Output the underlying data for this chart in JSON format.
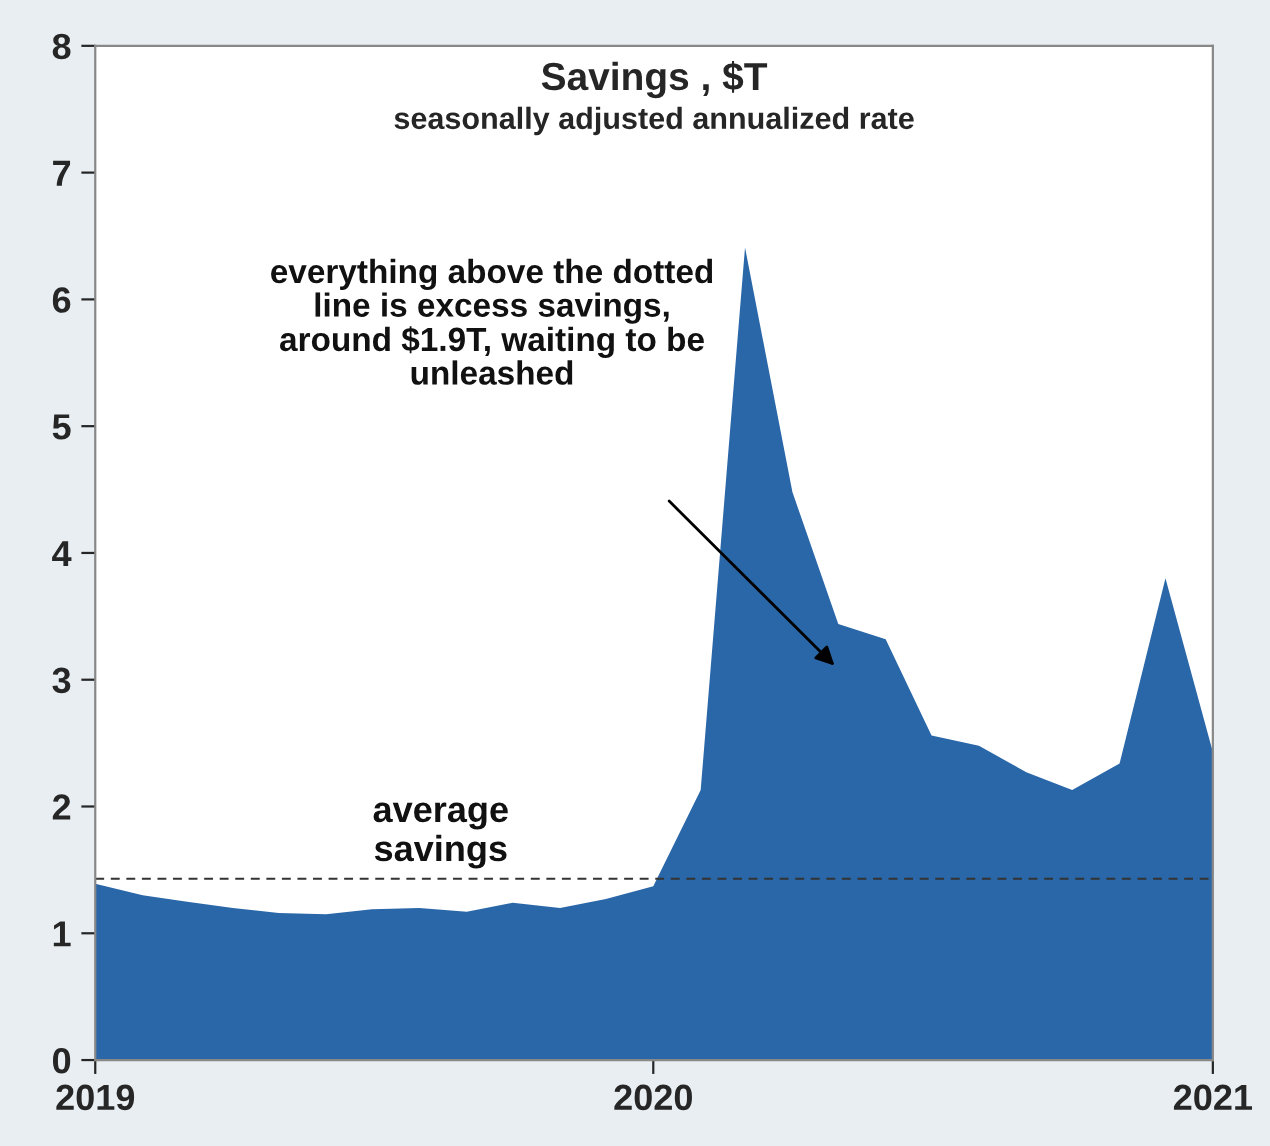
{
  "chart_data": {
    "type": "area",
    "title": "Savings , $T",
    "subtitle": "seasonally adjusted annualized rate",
    "x": [
      "2019-01",
      "2019-02",
      "2019-03",
      "2019-04",
      "2019-05",
      "2019-06",
      "2019-07",
      "2019-08",
      "2019-09",
      "2019-10",
      "2019-11",
      "2019-12",
      "2020-01",
      "2020-02",
      "2020-03",
      "2020-04",
      "2020-05",
      "2020-06",
      "2020-07",
      "2020-08",
      "2020-09",
      "2020-10",
      "2020-11",
      "2020-12",
      "2021-01"
    ],
    "series": [
      {
        "color": "#2a67a8",
        "values": [
          1.39,
          1.3,
          1.25,
          1.2,
          1.16,
          1.15,
          1.19,
          1.2,
          1.17,
          1.24,
          1.2,
          1.27,
          1.37,
          2.13,
          6.41,
          4.48,
          3.44,
          3.32,
          2.56,
          2.48,
          2.27,
          2.13,
          2.34,
          3.8,
          2.43
        ]
      }
    ],
    "xlim": [
      "2019",
      "2021"
    ],
    "xticks": [
      "2019",
      "2020",
      "2021"
    ],
    "ylim": [
      0,
      8
    ],
    "yticks": [
      0,
      1,
      2,
      3,
      4,
      5,
      6,
      7,
      8
    ],
    "ref_lines": [
      {
        "axis": "y",
        "value": 1.43,
        "label": "average savings",
        "color": "#333333",
        "line_style": "dashed"
      }
    ],
    "annotations": [
      "everything above the dotted\nline is excess savings,\naround $1.9T, waiting to be\nunleashed"
    ],
    "grid": false,
    "legend": false
  }
}
